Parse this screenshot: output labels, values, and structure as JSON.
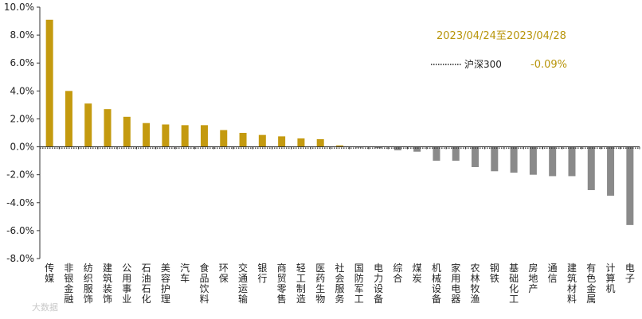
{
  "chart_data": {
    "type": "bar",
    "title": "",
    "xlabel": "",
    "ylabel": "",
    "ylim": [
      -8,
      10
    ],
    "yticks": [
      10,
      8,
      6,
      4,
      2,
      0,
      -2,
      -4,
      -6,
      -8
    ],
    "ytick_labels": [
      "10.0%",
      "8.0%",
      "6.0%",
      "4.0%",
      "2.0%",
      "0.0%",
      "-2.0%",
      "-4.0%",
      "-6.0%",
      "-8.0%"
    ],
    "grid": false,
    "categories": [
      "传媒",
      "非银金融",
      "纺织服饰",
      "建筑装饰",
      "公用事业",
      "石油石化",
      "美容护理",
      "汽车",
      "食品饮料",
      "环保",
      "交通运输",
      "银行",
      "商贸零售",
      "轻工制造",
      "医药生物",
      "社会服务",
      "国防军工",
      "电力设备",
      "综合",
      "煤炭",
      "机械设备",
      "家用电器",
      "农林牧渔",
      "钢铁",
      "基础化工",
      "房地产",
      "通信",
      "建筑材料",
      "有色金属",
      "计算机",
      "电子"
    ],
    "values": [
      9.1,
      4.0,
      3.1,
      2.7,
      2.15,
      1.7,
      1.6,
      1.55,
      1.55,
      1.2,
      1.0,
      0.85,
      0.75,
      0.6,
      0.55,
      0.1,
      -0.05,
      -0.1,
      -0.25,
      -0.35,
      -1.0,
      -1.0,
      -1.45,
      -1.75,
      -1.85,
      -2.0,
      -2.1,
      -2.1,
      -3.1,
      -3.5,
      -5.6
    ],
    "positive_color": "#c49a0f",
    "negative_color": "#8a8a8a",
    "date_range": "2023/04/24至2023/04/28",
    "benchmark": {
      "name": "沪深300",
      "value": -0.09,
      "value_label": "-0.09%"
    }
  },
  "watermark": "大数据"
}
